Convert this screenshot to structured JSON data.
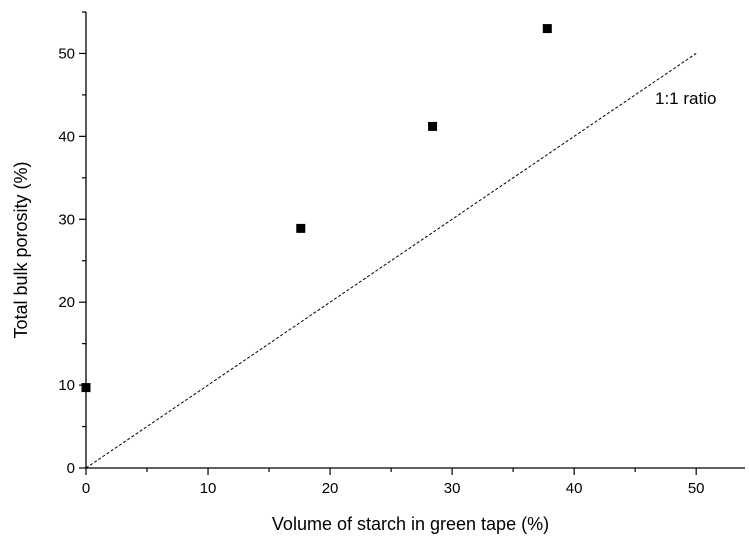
{
  "chart_data": {
    "type": "scatter",
    "xlabel": "Volume of starch in green tape (%)",
    "ylabel": "Total bulk porosity (%)",
    "xlim": [
      0,
      54
    ],
    "ylim": [
      0,
      55
    ],
    "x_ticks": [
      0,
      10,
      20,
      30,
      40,
      50
    ],
    "y_ticks": [
      0,
      10,
      20,
      30,
      40,
      50
    ],
    "x_minor_step": 5,
    "y_minor_step": 5,
    "grid": false,
    "series": [
      {
        "marker": "square",
        "color": "#000000",
        "points": [
          {
            "x": 0,
            "y": 9.7
          },
          {
            "x": 17.6,
            "y": 28.9
          },
          {
            "x": 28.4,
            "y": 41.2
          },
          {
            "x": 37.8,
            "y": 53.0
          }
        ]
      }
    ],
    "reference_line": {
      "label": "1:1 ratio",
      "style": "dashed",
      "from": [
        0,
        0
      ],
      "to": [
        50,
        50
      ]
    }
  }
}
